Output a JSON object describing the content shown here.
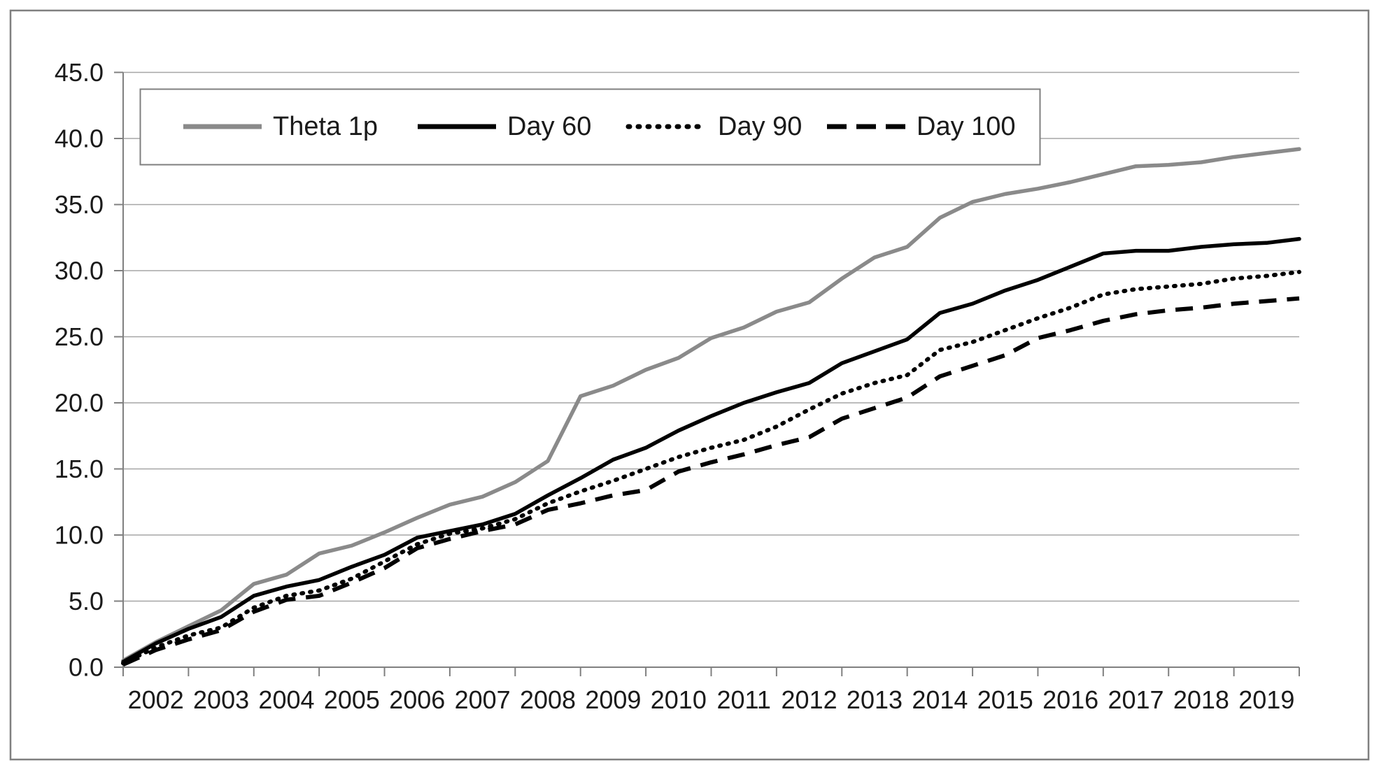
{
  "figure": {
    "background": "#ffffff",
    "outer_border_color": "#7f7f7f",
    "gridline_color": "#a6a6a6",
    "axis_color": "#808080",
    "text_color": "#1a1a1a"
  },
  "chart_data": {
    "type": "line",
    "title": "",
    "xlabel": "",
    "ylabel": "",
    "grid": "horizontal",
    "legend_position": "top-inside-boxed",
    "ylim": [
      0,
      45
    ],
    "xlim": [
      2002,
      2020
    ],
    "y_tick_step": 5,
    "y_tick_labels": [
      "0.0",
      "5.0",
      "10.0",
      "15.0",
      "20.0",
      "25.0",
      "30.0",
      "35.0",
      "40.0",
      "45.0"
    ],
    "x_tick_labels": [
      "2002",
      "2003",
      "2004",
      "2005",
      "2006",
      "2007",
      "2008",
      "2009",
      "2010",
      "2011",
      "2012",
      "2013",
      "2014",
      "2015",
      "2016",
      "2017",
      "2018",
      "2019"
    ],
    "x": [
      2002.0,
      2002.5,
      2003.0,
      2003.5,
      2004.0,
      2004.5,
      2005.0,
      2005.5,
      2006.0,
      2006.5,
      2007.0,
      2007.5,
      2008.0,
      2008.5,
      2009.0,
      2009.5,
      2010.0,
      2010.5,
      2011.0,
      2011.5,
      2012.0,
      2012.5,
      2013.0,
      2013.5,
      2014.0,
      2014.5,
      2015.0,
      2015.5,
      2016.0,
      2016.5,
      2017.0,
      2017.5,
      2018.0,
      2018.5,
      2019.0,
      2019.5,
      2020.0
    ],
    "series": [
      {
        "name": "Theta 1p",
        "style": "solid",
        "color": "#8a8a8a",
        "values": [
          0.5,
          1.9,
          3.1,
          4.3,
          6.3,
          7.0,
          8.6,
          9.2,
          10.2,
          11.3,
          12.3,
          12.9,
          14.0,
          15.6,
          20.5,
          21.3,
          22.5,
          23.4,
          24.9,
          25.7,
          26.9,
          27.6,
          29.4,
          31.0,
          31.8,
          34.0,
          35.2,
          35.8,
          36.2,
          36.7,
          37.3,
          37.9,
          38.0,
          38.2,
          38.6,
          38.9,
          39.2
        ]
      },
      {
        "name": "Day 60",
        "style": "solid",
        "color": "#000000",
        "values": [
          0.4,
          1.8,
          2.9,
          3.8,
          5.4,
          6.1,
          6.6,
          7.6,
          8.5,
          9.8,
          10.3,
          10.8,
          11.6,
          13.0,
          14.3,
          15.7,
          16.6,
          17.9,
          19.0,
          20.0,
          20.8,
          21.5,
          23.0,
          23.9,
          24.8,
          26.8,
          27.5,
          28.5,
          29.3,
          30.3,
          31.3,
          31.5,
          31.5,
          31.8,
          32.0,
          32.1,
          32.4
        ]
      },
      {
        "name": "Day 90",
        "style": "dotted",
        "color": "#000000",
        "values": [
          0.3,
          1.5,
          2.4,
          3.0,
          4.5,
          5.4,
          5.8,
          6.7,
          8.0,
          9.3,
          10.1,
          10.5,
          11.2,
          12.4,
          13.3,
          14.1,
          15.0,
          15.9,
          16.6,
          17.2,
          18.2,
          19.5,
          20.7,
          21.5,
          22.1,
          24.0,
          24.6,
          25.5,
          26.4,
          27.2,
          28.2,
          28.6,
          28.8,
          29.0,
          29.4,
          29.6,
          29.9
        ]
      },
      {
        "name": "Day 100",
        "style": "dashed",
        "color": "#000000",
        "values": [
          0.2,
          1.3,
          2.1,
          2.8,
          4.2,
          5.1,
          5.4,
          6.4,
          7.5,
          9.0,
          9.7,
          10.3,
          10.8,
          11.9,
          12.4,
          13.0,
          13.4,
          14.8,
          15.5,
          16.1,
          16.8,
          17.4,
          18.8,
          19.6,
          20.4,
          22.0,
          22.8,
          23.6,
          24.9,
          25.5,
          26.2,
          26.7,
          27.0,
          27.2,
          27.5,
          27.7,
          27.9
        ]
      }
    ]
  }
}
